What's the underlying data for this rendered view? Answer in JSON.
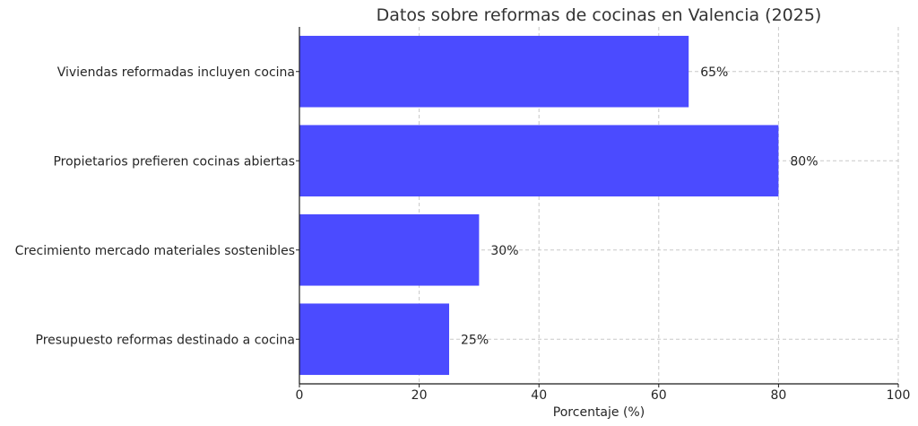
{
  "chart_data": {
    "type": "bar",
    "orientation": "horizontal",
    "title": "Datos sobre reformas de cocinas en Valencia (2025)",
    "xlabel": "Porcentaje (%)",
    "ylabel": "",
    "xlim": [
      0,
      100
    ],
    "xticks": [
      0,
      20,
      40,
      60,
      80,
      100
    ],
    "grid": true,
    "bar_color": "#4b4bff",
    "categories": [
      "Viviendas reformadas incluyen cocina",
      "Propietarios prefieren cocinas abiertas",
      "Crecimiento mercado materiales sostenibles",
      "Presupuesto reformas destinado a cocina"
    ],
    "values": [
      65,
      80,
      30,
      25
    ],
    "value_labels": [
      "65%",
      "80%",
      "30%",
      "25%"
    ]
  }
}
